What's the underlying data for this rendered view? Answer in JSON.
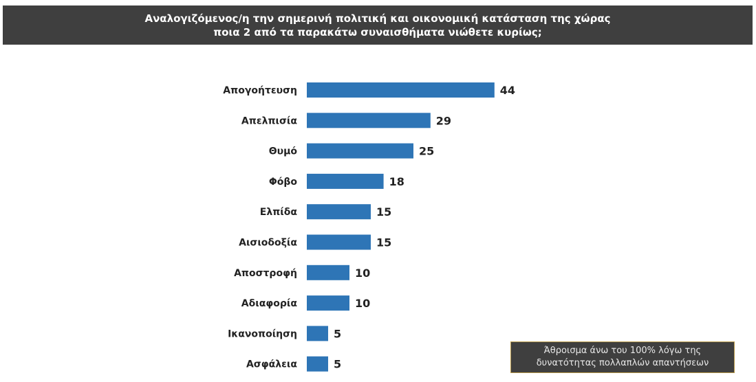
{
  "chart_data": {
    "type": "bar",
    "orientation": "horizontal",
    "title_lines": [
      "Αναλογιζόμενος/η την σημερινή πολιτική και οικονομική κατάσταση της χώρας",
      "ποια 2 από τα παρακάτω συναισθήματα νιώθετε κυρίως;"
    ],
    "categories": [
      "Απογοήτευση",
      "Απελπισία",
      "Θυμό",
      "Φόβο",
      "Ελπίδα",
      "Αισιοδοξία",
      "Αποστροφή",
      "Αδιαφορία",
      "Ικανοποίηση",
      "Ασφάλεια"
    ],
    "values": [
      44,
      29,
      25,
      18,
      15,
      15,
      10,
      10,
      5,
      5
    ],
    "xlim": [
      0,
      50
    ],
    "grid": false,
    "legend": "none",
    "bar_color": "#2e75b6"
  },
  "note_lines": [
    "Άθροισμα άνω του 100% λόγω της",
    "δυνατότητας πολλαπλών απαντήσεων"
  ]
}
